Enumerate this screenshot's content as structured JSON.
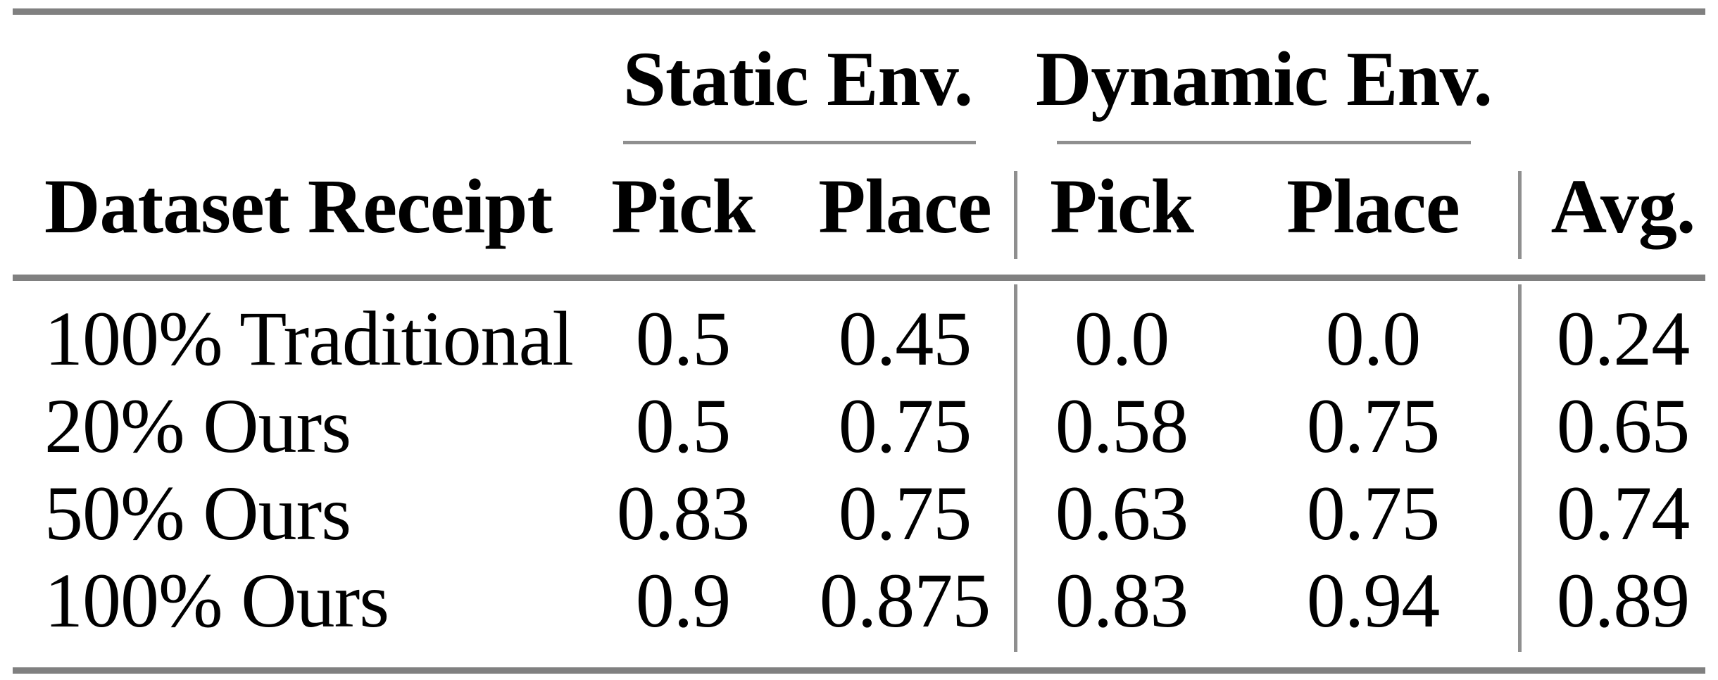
{
  "colors": {
    "background": "#ffffff",
    "text": "#000000",
    "rule_thick": "#808080",
    "rule_thin": "#8f8f8f"
  },
  "chart_data": {
    "type": "table",
    "group_headers": [
      {
        "label": "Static Env.",
        "columns": [
          "Pick",
          "Place"
        ]
      },
      {
        "label": "Dynamic Env.",
        "columns": [
          "Pick",
          "Place"
        ]
      }
    ],
    "columns": [
      "Dataset Receipt",
      "Pick",
      "Place",
      "Pick",
      "Place",
      "Avg."
    ],
    "rows": [
      [
        "100% Traditional",
        "0.5",
        "0.45",
        "0.0",
        "0.0",
        "0.24"
      ],
      [
        "20% Ours",
        "0.5",
        "0.75",
        "0.58",
        "0.75",
        "0.65"
      ],
      [
        "50% Ours",
        "0.83",
        "0.75",
        "0.63",
        "0.75",
        "0.74"
      ],
      [
        "100% Ours",
        "0.9",
        "0.875",
        "0.83",
        "0.94",
        "0.89"
      ]
    ]
  }
}
